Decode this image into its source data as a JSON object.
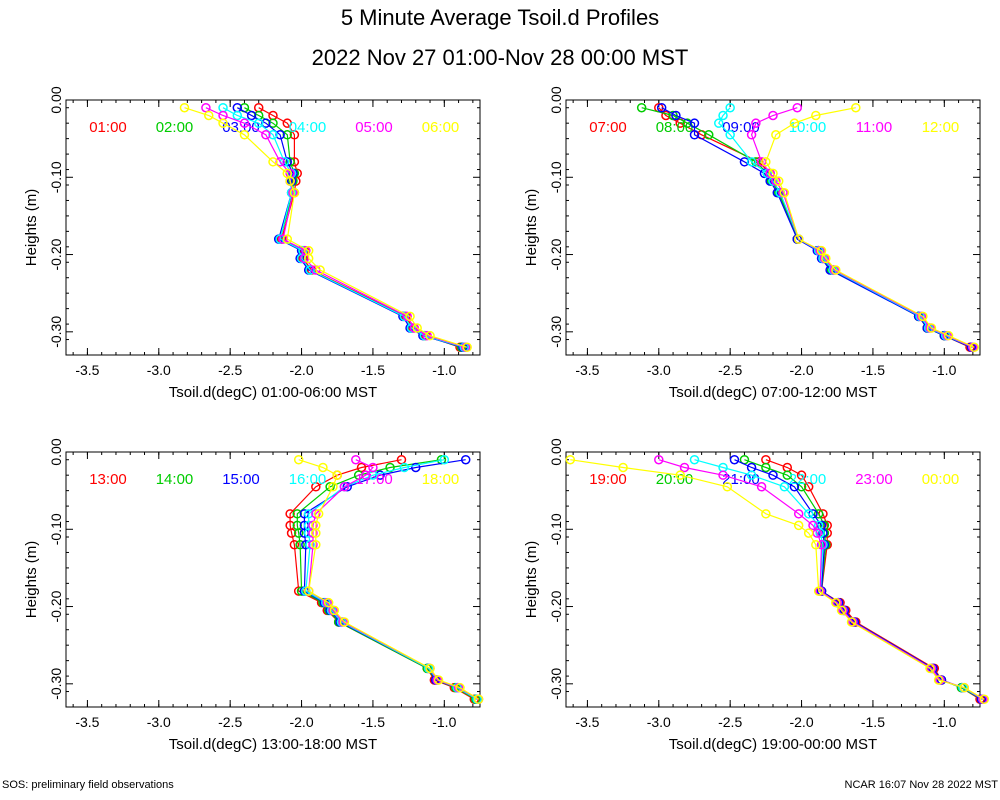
{
  "title": "5 Minute Average Tsoil.d Profiles",
  "subtitle": "2022 Nov 27 01:00-Nov 28 00:00 MST",
  "footer_left": "SOS: preliminary field observations",
  "footer_right": "NCAR 16:07 Nov 28 2022 MST",
  "colors": [
    "#ff0000",
    "#00cc00",
    "#0000ff",
    "#00ffff",
    "#ff00ff",
    "#ffff00"
  ],
  "chart_data": [
    {
      "type": "line",
      "xlabel": "Tsoil.d(degC) 01:00-06:00 MST",
      "ylabel": "Heights (m)",
      "xlim": [
        -3.65,
        -0.75
      ],
      "ylim": [
        -0.33,
        0.0
      ],
      "xticks": [
        "-3.5",
        "-3.0",
        "-2.5",
        "-2.0",
        "-1.5",
        "-1.0"
      ],
      "yticks": [
        "0.00",
        "-0.10",
        "-0.20",
        "-0.30"
      ],
      "heights": [
        -0.01,
        -0.02,
        -0.03,
        -0.045,
        -0.08,
        -0.095,
        -0.105,
        -0.12,
        -0.18,
        -0.195,
        -0.205,
        -0.22,
        -0.28,
        -0.295,
        -0.305,
        -0.32
      ],
      "series": [
        {
          "name": "01:00",
          "values": [
            -2.3,
            -2.2,
            -2.1,
            -2.05,
            -2.05,
            -2.03,
            -2.04,
            -2.05,
            -2.14,
            -1.98,
            -1.99,
            -1.93,
            -1.27,
            -1.22,
            -1.13,
            -0.89
          ]
        },
        {
          "name": "02:00",
          "values": [
            -2.4,
            -2.3,
            -2.2,
            -2.1,
            -2.08,
            -2.05,
            -2.06,
            -2.06,
            -2.15,
            -1.99,
            -2.0,
            -1.94,
            -1.28,
            -1.23,
            -1.14,
            -0.88
          ]
        },
        {
          "name": "03:00",
          "values": [
            -2.45,
            -2.35,
            -2.25,
            -2.15,
            -2.1,
            -2.06,
            -2.07,
            -2.07,
            -2.16,
            -2.0,
            -2.01,
            -1.95,
            -1.29,
            -1.24,
            -1.15,
            -0.87
          ]
        },
        {
          "name": "04:00",
          "values": [
            -2.55,
            -2.45,
            -2.3,
            -2.2,
            -2.12,
            -2.07,
            -2.08,
            -2.07,
            -2.15,
            -1.99,
            -2.0,
            -1.94,
            -1.28,
            -1.23,
            -1.14,
            -0.86
          ]
        },
        {
          "name": "05:00",
          "values": [
            -2.67,
            -2.55,
            -2.4,
            -2.25,
            -2.15,
            -2.08,
            -2.08,
            -2.06,
            -2.13,
            -1.97,
            -1.98,
            -1.9,
            -1.26,
            -1.21,
            -1.12,
            -0.85
          ]
        },
        {
          "name": "06:00",
          "values": [
            -2.82,
            -2.65,
            -2.55,
            -2.4,
            -2.2,
            -2.1,
            -2.08,
            -2.05,
            -2.1,
            -1.95,
            -1.95,
            -1.87,
            -1.24,
            -1.19,
            -1.1,
            -0.84
          ]
        }
      ]
    },
    {
      "type": "line",
      "xlabel": "Tsoil.d(degC) 07:00-12:00 MST",
      "ylabel": "Heights (m)",
      "xlim": [
        -3.65,
        -0.75
      ],
      "ylim": [
        -0.33,
        0.0
      ],
      "xticks": [
        "-3.5",
        "-3.0",
        "-2.5",
        "-2.0",
        "-1.5",
        "-1.0"
      ],
      "yticks": [
        "0.00",
        "-0.10",
        "-0.20",
        "-0.30"
      ],
      "heights": [
        -0.01,
        -0.02,
        -0.03,
        -0.045,
        -0.08,
        -0.095,
        -0.105,
        -0.12,
        -0.18,
        -0.195,
        -0.205,
        -0.22,
        -0.28,
        -0.295,
        -0.305,
        -0.32
      ],
      "series": [
        {
          "name": "07:00",
          "values": [
            -3.0,
            -2.95,
            -2.85,
            -2.7,
            -2.3,
            -2.22,
            -2.2,
            -2.15,
            -2.03,
            -1.88,
            -1.85,
            -1.78,
            -1.18,
            -1.12,
            -1.0,
            -0.82
          ]
        },
        {
          "name": "08:00",
          "values": [
            -3.12,
            -2.9,
            -2.8,
            -2.65,
            -2.32,
            -2.24,
            -2.21,
            -2.16,
            -2.03,
            -1.88,
            -1.85,
            -1.79,
            -1.18,
            -1.12,
            -1.0,
            -0.81
          ]
        },
        {
          "name": "09:00",
          "values": [
            -2.98,
            -2.88,
            -2.75,
            -2.75,
            -2.4,
            -2.26,
            -2.22,
            -2.17,
            -2.03,
            -1.89,
            -1.86,
            -1.8,
            -1.18,
            -1.12,
            -1.0,
            -0.81
          ]
        },
        {
          "name": "10:00",
          "values": [
            -2.5,
            -2.55,
            -2.58,
            -2.5,
            -2.35,
            -2.24,
            -2.2,
            -2.15,
            -2.02,
            -1.88,
            -1.85,
            -1.78,
            -1.17,
            -1.11,
            -0.99,
            -0.8
          ]
        },
        {
          "name": "11:00",
          "values": [
            -2.03,
            -2.2,
            -2.32,
            -2.35,
            -2.28,
            -2.22,
            -2.18,
            -2.13,
            -2.02,
            -1.87,
            -1.84,
            -1.77,
            -1.16,
            -1.1,
            -0.98,
            -0.8
          ]
        },
        {
          "name": "12:00",
          "values": [
            -1.62,
            -1.9,
            -2.05,
            -2.18,
            -2.25,
            -2.2,
            -2.16,
            -2.12,
            -2.02,
            -1.86,
            -1.83,
            -1.76,
            -1.15,
            -1.09,
            -0.97,
            -0.79
          ]
        }
      ]
    },
    {
      "type": "line",
      "xlabel": "Tsoil.d(degC) 13:00-18:00 MST",
      "ylabel": "Heights (m)",
      "xlim": [
        -3.65,
        -0.75
      ],
      "ylim": [
        -0.33,
        0.0
      ],
      "xticks": [
        "-3.5",
        "-3.0",
        "-2.5",
        "-2.0",
        "-1.5",
        "-1.0"
      ],
      "yticks": [
        "0.00",
        "-0.10",
        "-0.20",
        "-0.30"
      ],
      "heights": [
        -0.01,
        -0.02,
        -0.03,
        -0.045,
        -0.08,
        -0.095,
        -0.105,
        -0.12,
        -0.18,
        -0.195,
        -0.205,
        -0.22,
        -0.28,
        -0.295,
        -0.305,
        -0.32
      ],
      "series": [
        {
          "name": "13:00",
          "values": [
            -1.3,
            -1.58,
            -1.75,
            -1.9,
            -2.08,
            -2.08,
            -2.07,
            -2.05,
            -2.02,
            -1.86,
            -1.82,
            -1.74,
            -1.12,
            -1.07,
            -0.93,
            -0.79
          ]
        },
        {
          "name": "14:00",
          "values": [
            -1.02,
            -1.38,
            -1.6,
            -1.8,
            -2.03,
            -2.03,
            -2.02,
            -2.01,
            -2.0,
            -1.85,
            -1.81,
            -1.74,
            -1.12,
            -1.06,
            -0.92,
            -0.78
          ]
        },
        {
          "name": "15:00",
          "values": [
            -0.85,
            -1.2,
            -1.45,
            -1.68,
            -1.98,
            -1.98,
            -1.98,
            -1.97,
            -1.98,
            -1.84,
            -1.8,
            -1.73,
            -1.11,
            -1.06,
            -0.91,
            -0.77
          ]
        },
        {
          "name": "16:00",
          "values": [
            -1.0,
            -1.28,
            -1.5,
            -1.7,
            -1.95,
            -1.95,
            -1.95,
            -1.94,
            -1.97,
            -1.83,
            -1.79,
            -1.72,
            -1.11,
            -1.05,
            -0.91,
            -0.77
          ]
        },
        {
          "name": "17:00",
          "values": [
            -1.62,
            -1.5,
            -1.55,
            -1.7,
            -1.9,
            -1.92,
            -1.92,
            -1.92,
            -1.95,
            -1.82,
            -1.78,
            -1.71,
            -1.1,
            -1.05,
            -0.9,
            -0.76
          ]
        },
        {
          "name": "18:00",
          "values": [
            -2.02,
            -1.85,
            -1.75,
            -1.78,
            -1.88,
            -1.9,
            -1.9,
            -1.9,
            -1.95,
            -1.81,
            -1.77,
            -1.7,
            -1.1,
            -1.04,
            -0.89,
            -0.76
          ]
        }
      ]
    },
    {
      "type": "line",
      "xlabel": "Tsoil.d(degC) 19:00-00:00 MST",
      "ylabel": "Heights (m)",
      "xlim": [
        -3.65,
        -0.75
      ],
      "ylim": [
        -0.33,
        0.0
      ],
      "xticks": [
        "-3.5",
        "-3.0",
        "-2.5",
        "-2.0",
        "-1.5",
        "-1.0"
      ],
      "yticks": [
        "0.00",
        "-0.10",
        "-0.20",
        "-0.30"
      ],
      "heights": [
        -0.01,
        -0.02,
        -0.03,
        -0.045,
        -0.08,
        -0.095,
        -0.105,
        -0.12,
        -0.18,
        -0.195,
        -0.205,
        -0.22,
        -0.28,
        -0.295,
        -0.305,
        -0.32
      ],
      "series": [
        {
          "name": "19:00",
          "values": [
            -2.25,
            -2.1,
            -2.0,
            -1.95,
            -1.85,
            -1.82,
            -1.82,
            -1.82,
            -1.86,
            -1.73,
            -1.69,
            -1.62,
            -1.07,
            -1.02,
            -0.88,
            -0.75
          ]
        },
        {
          "name": "20:00",
          "values": [
            -2.4,
            -2.25,
            -2.1,
            -2.0,
            -1.88,
            -1.84,
            -1.84,
            -1.83,
            -1.86,
            -1.74,
            -1.7,
            -1.63,
            -1.08,
            -1.02,
            -0.88,
            -0.74
          ]
        },
        {
          "name": "21:00",
          "values": [
            -2.47,
            -2.35,
            -2.2,
            -2.05,
            -1.92,
            -1.86,
            -1.85,
            -1.84,
            -1.86,
            -1.74,
            -1.7,
            -1.63,
            -1.08,
            -1.02,
            -0.87,
            -0.74
          ]
        },
        {
          "name": "22:00",
          "values": [
            -2.75,
            -2.55,
            -2.35,
            -2.12,
            -1.95,
            -1.88,
            -1.87,
            -1.85,
            -1.87,
            -1.75,
            -1.71,
            -1.64,
            -1.09,
            -1.03,
            -0.87,
            -0.73
          ]
        },
        {
          "name": "23:00",
          "values": [
            -3.0,
            -2.82,
            -2.55,
            -2.28,
            -2.02,
            -1.92,
            -1.89,
            -1.86,
            -1.87,
            -1.75,
            -1.71,
            -1.64,
            -1.09,
            -1.03,
            -0.86,
            -0.73
          ]
        },
        {
          "name": "00:00",
          "values": [
            -3.62,
            -3.25,
            -2.85,
            -2.52,
            -2.25,
            -2.02,
            -1.95,
            -1.9,
            -1.88,
            -1.76,
            -1.72,
            -1.65,
            -1.1,
            -1.04,
            -0.86,
            -0.72
          ]
        }
      ]
    }
  ]
}
